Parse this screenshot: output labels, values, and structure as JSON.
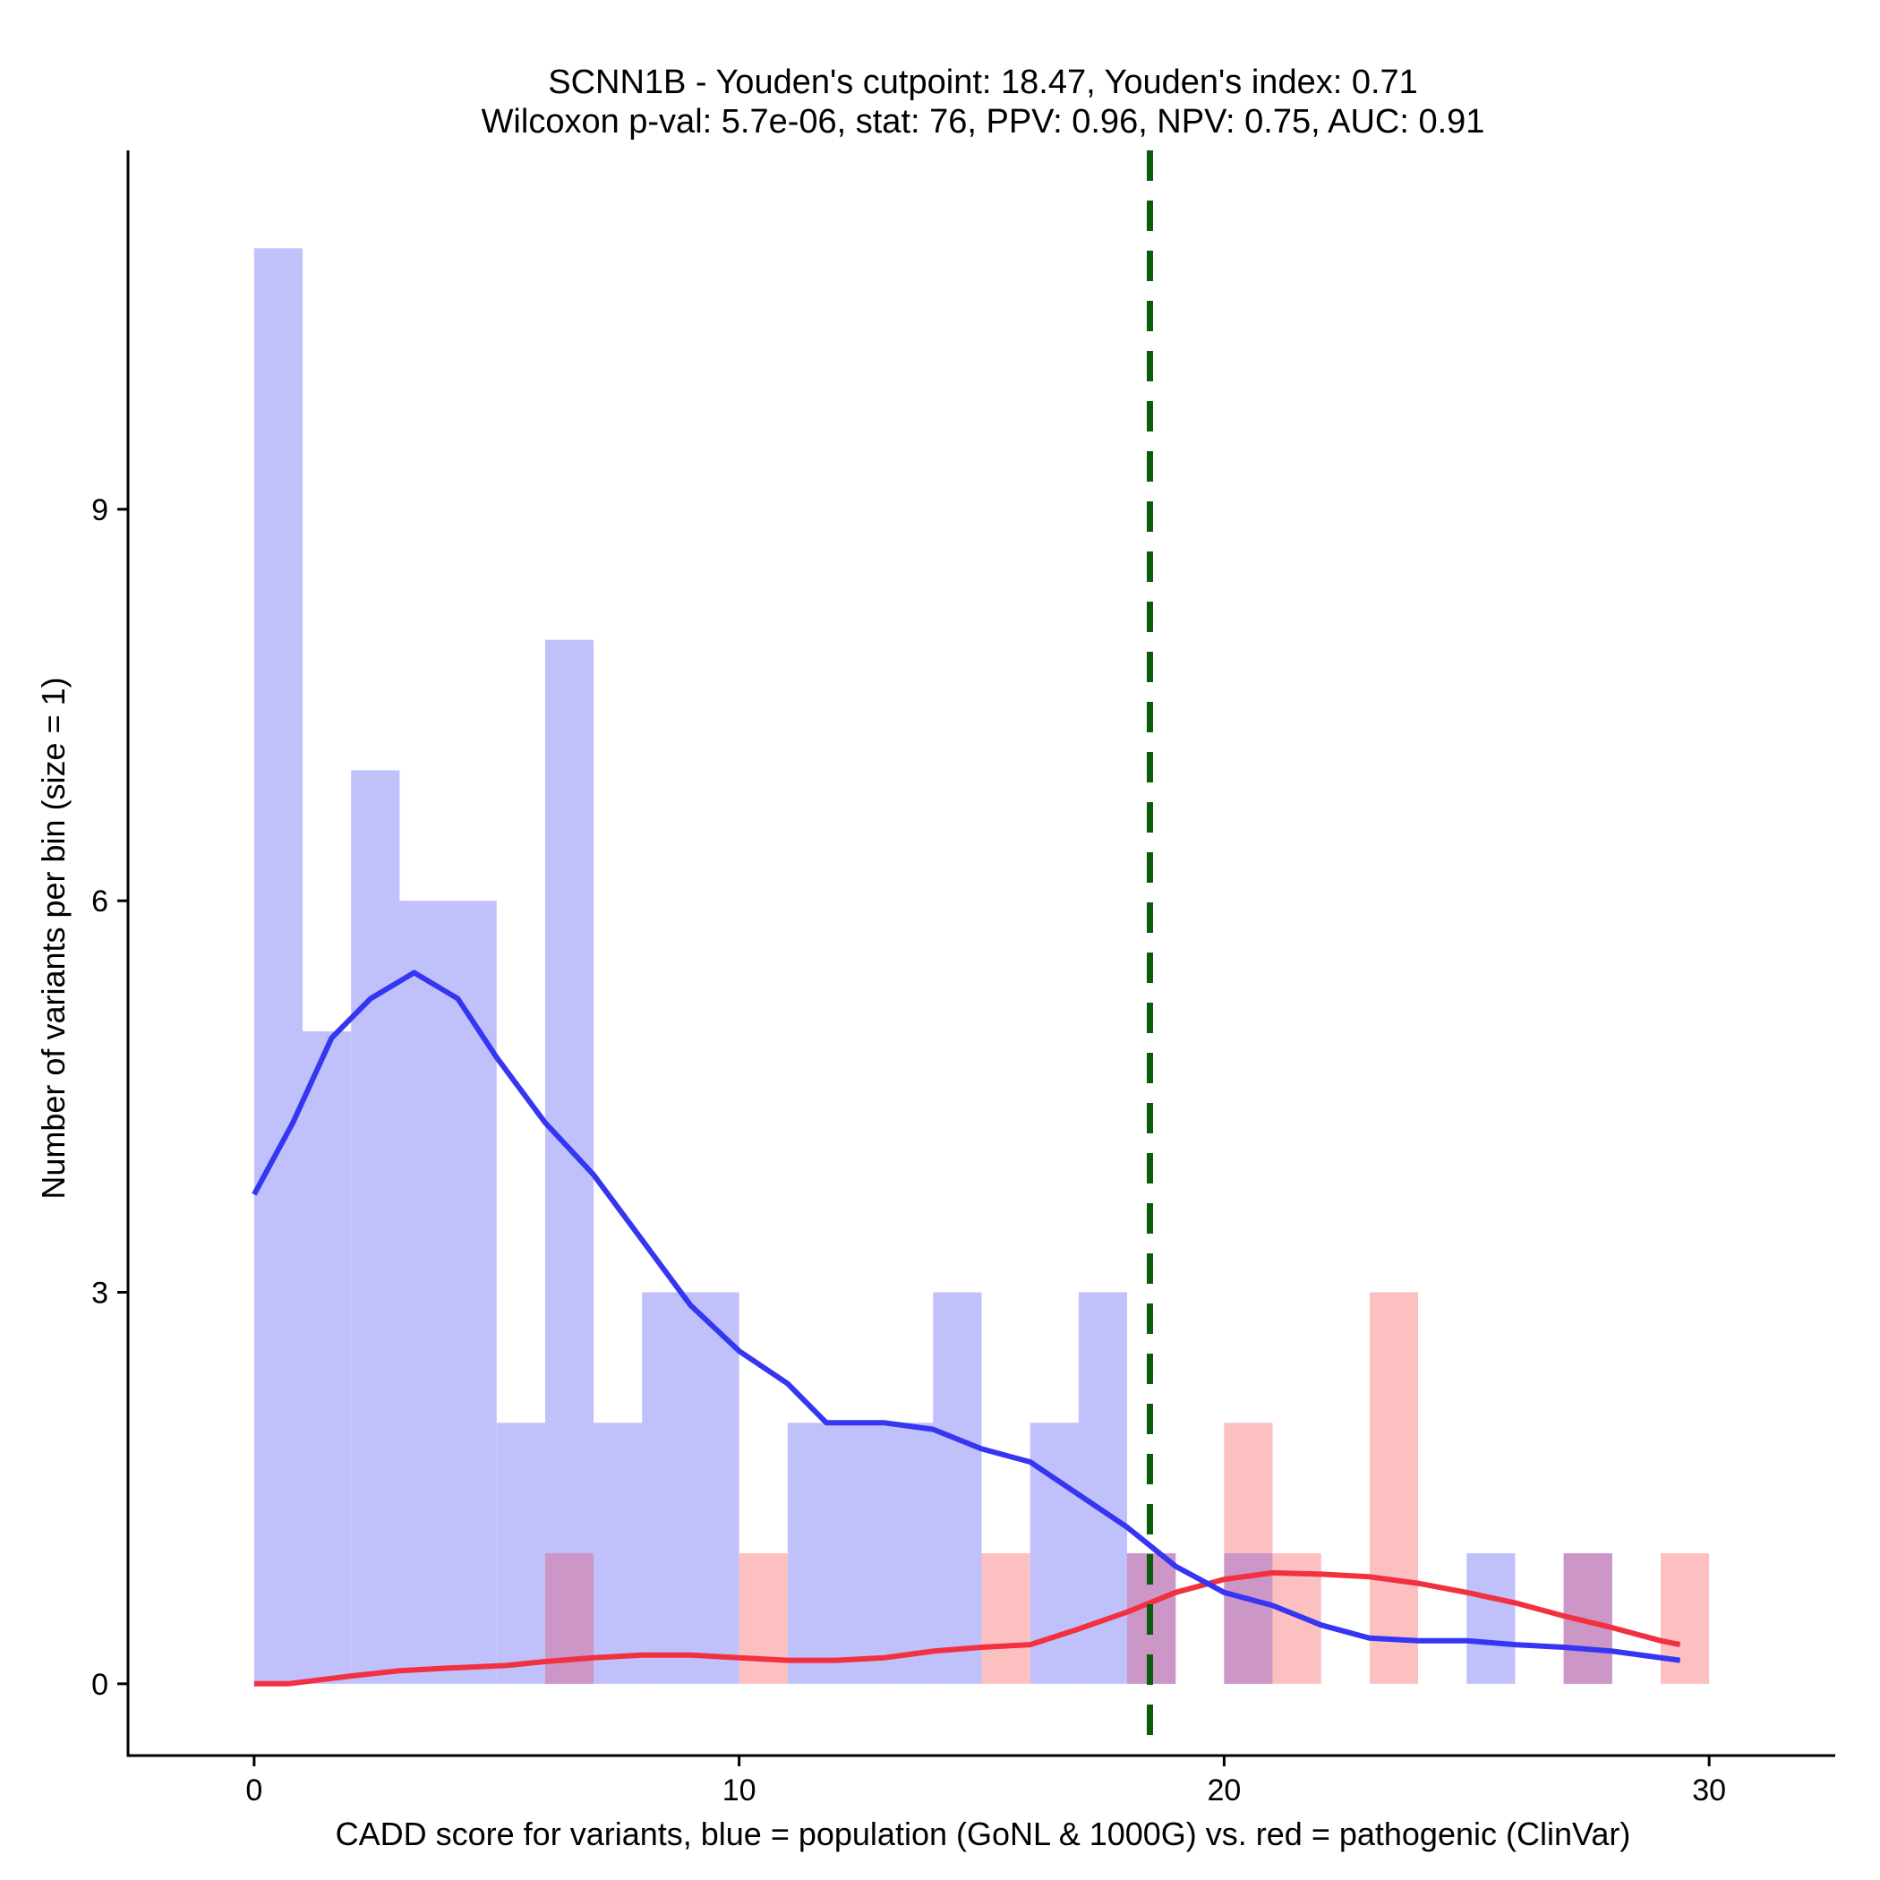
{
  "chart_data": {
    "type": "histogram",
    "title_line1": "SCNN1B - Youden's cutpoint: 18.47, Youden's index: 0.71",
    "title_line2": "Wilcoxon p-val: 5.7e-06, stat: 76, PPV: 0.96, NPV: 0.75, AUC: 0.91",
    "xlabel": "CADD score for variants, blue = population (GoNL & 1000G) vs. red = pathogenic (ClinVar)",
    "ylabel": "Number of variants per bin (size = 1)",
    "xlim": [
      -2.6,
      32.6
    ],
    "ylim": [
      -0.55,
      11.75
    ],
    "x_ticks": [
      0,
      10,
      20,
      30
    ],
    "y_ticks": [
      0,
      3,
      6,
      9
    ],
    "cutpoint": 18.47,
    "colors": {
      "population_bar": "#c0c0fa",
      "pathogenic_bar": "#fcc0c0",
      "overlap_bar": "#cc96c6",
      "population_line": "#3535f2",
      "pathogenic_line": "#f2303f",
      "cutpoint_line": "#0b5c0b"
    },
    "series": [
      {
        "name": "population (GoNL & 1000G)",
        "bins": [
          [
            0,
            11
          ],
          [
            1,
            5
          ],
          [
            2,
            7
          ],
          [
            3,
            6
          ],
          [
            4,
            6
          ],
          [
            5,
            2
          ],
          [
            6,
            8
          ],
          [
            7,
            2
          ],
          [
            8,
            3
          ],
          [
            9,
            3
          ],
          [
            11,
            2
          ],
          [
            12,
            2
          ],
          [
            13,
            2
          ],
          [
            14,
            3
          ],
          [
            16,
            2
          ],
          [
            17,
            3
          ],
          [
            18,
            1
          ],
          [
            20,
            1
          ],
          [
            25,
            1
          ],
          [
            27,
            1
          ]
        ],
        "density": [
          [
            0,
            3.75
          ],
          [
            0.8,
            4.3
          ],
          [
            1.6,
            4.95
          ],
          [
            2.4,
            5.25
          ],
          [
            3.3,
            5.45
          ],
          [
            4.2,
            5.25
          ],
          [
            5,
            4.8
          ],
          [
            6,
            4.3
          ],
          [
            7,
            3.9
          ],
          [
            8,
            3.4
          ],
          [
            9,
            2.9
          ],
          [
            10,
            2.55
          ],
          [
            11,
            2.3
          ],
          [
            11.8,
            2.0
          ],
          [
            13,
            2.0
          ],
          [
            14,
            1.95
          ],
          [
            15,
            1.8
          ],
          [
            16,
            1.7
          ],
          [
            17,
            1.45
          ],
          [
            18,
            1.2
          ],
          [
            19,
            0.9
          ],
          [
            20,
            0.7
          ],
          [
            21,
            0.6
          ],
          [
            22,
            0.45
          ],
          [
            23,
            0.35
          ],
          [
            24,
            0.33
          ],
          [
            25,
            0.33
          ],
          [
            26,
            0.3
          ],
          [
            27,
            0.28
          ],
          [
            28,
            0.25
          ],
          [
            29.4,
            0.18
          ]
        ]
      },
      {
        "name": "pathogenic (ClinVar)",
        "bins": [
          [
            6,
            1
          ],
          [
            10,
            1
          ],
          [
            15,
            1
          ],
          [
            18,
            1
          ],
          [
            20,
            2
          ],
          [
            21,
            1
          ],
          [
            23,
            3
          ],
          [
            27,
            1
          ],
          [
            29,
            1
          ]
        ],
        "density": [
          [
            0,
            0.0
          ],
          [
            0.7,
            0.0
          ],
          [
            2,
            0.06
          ],
          [
            3,
            0.1
          ],
          [
            4,
            0.12
          ],
          [
            5.2,
            0.14
          ],
          [
            6,
            0.17
          ],
          [
            7,
            0.2
          ],
          [
            8,
            0.22
          ],
          [
            9,
            0.22
          ],
          [
            10,
            0.2
          ],
          [
            11,
            0.18
          ],
          [
            12,
            0.18
          ],
          [
            13,
            0.2
          ],
          [
            14,
            0.25
          ],
          [
            15,
            0.28
          ],
          [
            16,
            0.3
          ],
          [
            17,
            0.42
          ],
          [
            18,
            0.55
          ],
          [
            19,
            0.7
          ],
          [
            20,
            0.8
          ],
          [
            21,
            0.85
          ],
          [
            22,
            0.84
          ],
          [
            23,
            0.82
          ],
          [
            24,
            0.77
          ],
          [
            25,
            0.7
          ],
          [
            26,
            0.62
          ],
          [
            27,
            0.52
          ],
          [
            28,
            0.43
          ],
          [
            29,
            0.33
          ],
          [
            29.4,
            0.3
          ]
        ]
      }
    ]
  }
}
